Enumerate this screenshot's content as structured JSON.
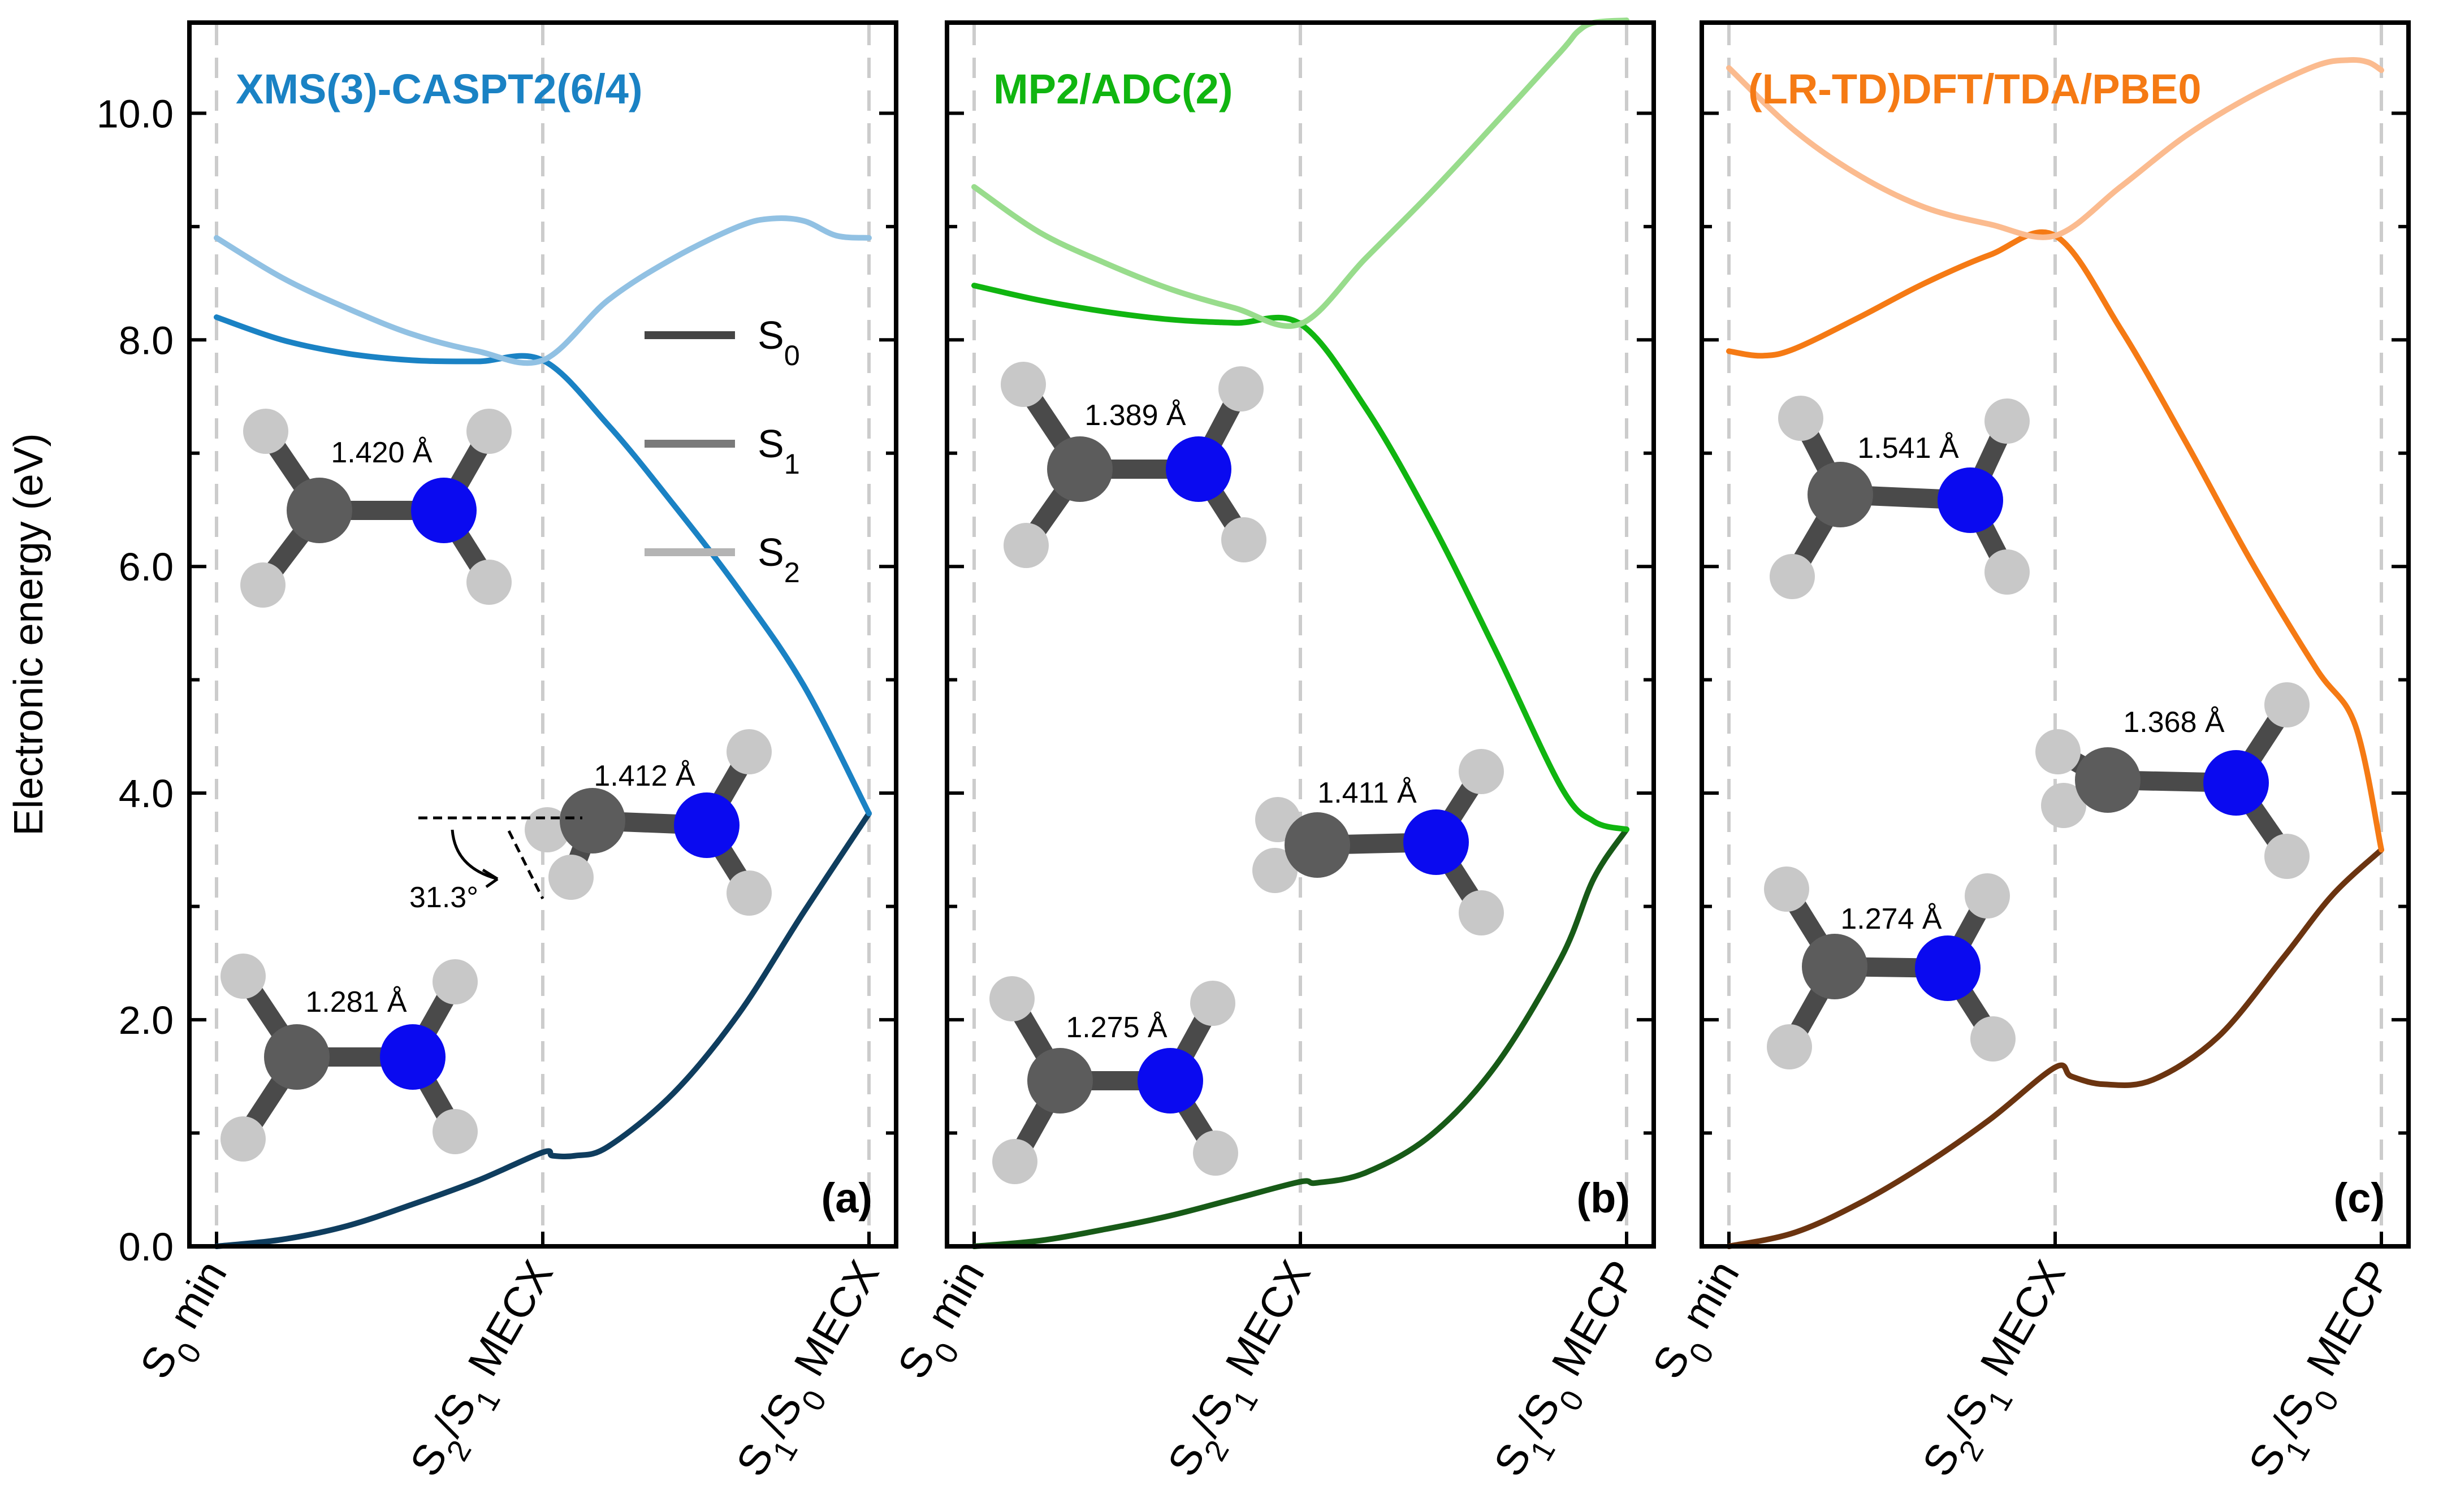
{
  "chart_data": [
    {
      "type": "line",
      "panel_letter": "(a)",
      "title": "XMS(3)-CASPT2(6/4)",
      "title_color": "#1a82c4",
      "ylabel": "Electronic energy (eV)",
      "ylim": [
        0,
        10.8
      ],
      "yticks": [
        "0.0",
        "2.0",
        "4.0",
        "6.0",
        "8.0",
        "10.0"
      ],
      "ytick_values": [
        0,
        2,
        4,
        6,
        8,
        10
      ],
      "xticks": [
        {
          "main": "S",
          "sub1": "0",
          "rest": " min"
        },
        {
          "main": "S",
          "sub1": "2",
          "mid": "/S",
          "sub2": "1",
          "rest": " MECX"
        },
        {
          "main": "S",
          "sub1": "1",
          "mid": "/S",
          "sub2": "0",
          "rest": " MECX"
        }
      ],
      "x_range": [
        0,
        2
      ],
      "legend": [
        {
          "name": "S",
          "sub": "0",
          "color": "#454545"
        },
        {
          "name": "S",
          "sub": "1",
          "color": "#7a7a7a"
        },
        {
          "name": "S",
          "sub": "2",
          "color": "#b4b4b4"
        }
      ],
      "legend_position": "upper-middle",
      "series": [
        {
          "name": "S0",
          "color": "#0f3d5e",
          "x": [
            0,
            0.2,
            0.4,
            0.6,
            0.8,
            1.0,
            1.03,
            1.1,
            1.2,
            1.4,
            1.6,
            1.8,
            2.0
          ],
          "y": [
            0.0,
            0.06,
            0.18,
            0.37,
            0.58,
            0.83,
            0.8,
            0.8,
            0.88,
            1.35,
            2.05,
            2.95,
            3.82
          ]
        },
        {
          "name": "S1",
          "color": "#1a82c4",
          "x": [
            0,
            0.2,
            0.4,
            0.6,
            0.8,
            1.0,
            1.2,
            1.4,
            1.6,
            1.8,
            2.0
          ],
          "y": [
            8.2,
            8.0,
            7.88,
            7.82,
            7.81,
            7.82,
            7.25,
            6.55,
            5.8,
            4.95,
            3.82
          ]
        },
        {
          "name": "S2",
          "color": "#91c1e3",
          "x": [
            0,
            0.2,
            0.4,
            0.6,
            0.8,
            1.0,
            1.2,
            1.4,
            1.6,
            1.7,
            1.8,
            1.9,
            2.0
          ],
          "y": [
            8.9,
            8.55,
            8.28,
            8.05,
            7.9,
            7.82,
            8.35,
            8.72,
            9.0,
            9.07,
            9.05,
            8.92,
            8.9
          ]
        }
      ],
      "annotations": {
        "molecules": [
          "1.420 Å",
          "1.412 Å",
          "1.281 Å"
        ],
        "angle": "31.3°"
      }
    },
    {
      "type": "line",
      "panel_letter": "(b)",
      "title": "MP2/ADC(2)",
      "title_color": "#10b510",
      "xticks": [
        {
          "main": "S",
          "sub1": "0",
          "rest": " min"
        },
        {
          "main": "S",
          "sub1": "2",
          "mid": "/S",
          "sub2": "1",
          "rest": " MECX"
        },
        {
          "main": "S",
          "sub1": "1",
          "mid": "/S",
          "sub2": "0",
          "rest": " MECP"
        }
      ],
      "x_range": [
        0,
        2
      ],
      "series": [
        {
          "name": "S0",
          "color": "#175a17",
          "x": [
            0,
            0.2,
            0.4,
            0.6,
            0.8,
            1.0,
            1.05,
            1.2,
            1.4,
            1.6,
            1.8,
            1.9,
            2.0
          ],
          "y": [
            0.0,
            0.05,
            0.15,
            0.27,
            0.42,
            0.57,
            0.56,
            0.65,
            0.98,
            1.6,
            2.55,
            3.25,
            3.68
          ]
        },
        {
          "name": "S1",
          "color": "#10b510",
          "x": [
            0,
            0.2,
            0.4,
            0.6,
            0.8,
            1.0,
            1.2,
            1.4,
            1.6,
            1.8,
            1.9,
            2.0
          ],
          "y": [
            8.48,
            8.35,
            8.25,
            8.18,
            8.15,
            8.14,
            7.4,
            6.4,
            5.25,
            4.05,
            3.75,
            3.68
          ]
        },
        {
          "name": "S2",
          "color": "#98dc8c",
          "x": [
            0,
            0.2,
            0.4,
            0.6,
            0.8,
            1.0,
            1.2,
            1.4,
            1.6,
            1.8,
            1.85,
            1.9,
            2.0
          ],
          "y": [
            9.35,
            8.95,
            8.68,
            8.45,
            8.28,
            8.14,
            8.72,
            9.3,
            9.92,
            10.55,
            10.72,
            10.8,
            10.82
          ]
        }
      ],
      "annotations": {
        "molecules": [
          "1.389 Å",
          "1.411 Å",
          "1.275 Å"
        ]
      }
    },
    {
      "type": "line",
      "panel_letter": "(c)",
      "title": "(LR-TD)DFT/TDA/PBE0",
      "title_color": "#f57a14",
      "xticks": [
        {
          "main": "S",
          "sub1": "0",
          "rest": " min"
        },
        {
          "main": "S",
          "sub1": "2",
          "mid": "/S",
          "sub2": "1",
          "rest": " MECX"
        },
        {
          "main": "S",
          "sub1": "1",
          "mid": "/S",
          "sub2": "0",
          "rest": " MECP"
        }
      ],
      "x_range": [
        0,
        2
      ],
      "series": [
        {
          "name": "S0",
          "color": "#6b3410",
          "x": [
            0,
            0.2,
            0.4,
            0.6,
            0.8,
            1.0,
            1.05,
            1.15,
            1.3,
            1.5,
            1.7,
            1.85,
            2.0
          ],
          "y": [
            0.0,
            0.12,
            0.38,
            0.72,
            1.12,
            1.58,
            1.5,
            1.43,
            1.47,
            1.85,
            2.55,
            3.1,
            3.5
          ]
        },
        {
          "name": "S1",
          "color": "#f57a14",
          "x": [
            0,
            0.1,
            0.2,
            0.4,
            0.6,
            0.8,
            1.0,
            1.2,
            1.4,
            1.6,
            1.8,
            1.92,
            2.0
          ],
          "y": [
            7.9,
            7.86,
            7.92,
            8.2,
            8.5,
            8.75,
            8.92,
            8.1,
            7.1,
            6.05,
            5.1,
            4.6,
            3.5
          ]
        },
        {
          "name": "S2",
          "color": "#fbbb8f",
          "x": [
            0,
            0.2,
            0.4,
            0.6,
            0.8,
            1.0,
            1.2,
            1.4,
            1.6,
            1.8,
            1.9,
            1.96,
            2.0
          ],
          "y": [
            10.4,
            9.85,
            9.45,
            9.17,
            9.02,
            8.92,
            9.35,
            9.8,
            10.15,
            10.42,
            10.47,
            10.45,
            10.38
          ]
        }
      ],
      "annotations": {
        "molecules": [
          "1.541 Å",
          "1.368 Å",
          "1.274 Å"
        ]
      }
    }
  ]
}
